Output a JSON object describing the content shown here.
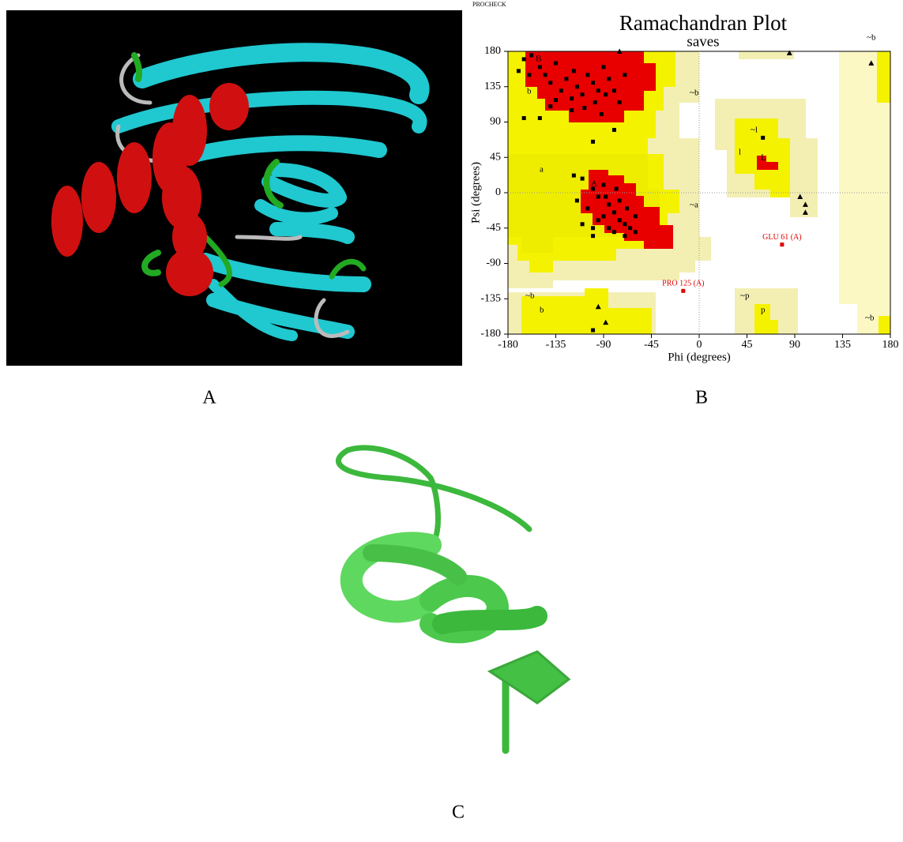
{
  "program": "PROCHECK",
  "panel_labels": [
    "A",
    "B",
    "C"
  ],
  "chart_data": {
    "type": "scatter",
    "title": "Ramachandran Plot",
    "subtitle": "saves",
    "xlabel": "Phi (degrees)",
    "ylabel": "Psi (degrees)",
    "xlim": [
      -180,
      180
    ],
    "ylim": [
      -180,
      180
    ],
    "xticks": [
      -180,
      -135,
      -90,
      -45,
      0,
      45,
      90,
      135,
      180
    ],
    "yticks": [
      -180,
      -135,
      -90,
      -45,
      0,
      45,
      90,
      135,
      180
    ],
    "region_labels": [
      "B",
      "b",
      "~b",
      "A",
      "a",
      "~a",
      "~l",
      "l",
      "L",
      "~b",
      "b",
      "~b",
      "~p",
      "p",
      "~b"
    ],
    "series": [
      {
        "marker": "square",
        "color": "#000000",
        "x": [
          -165,
          -158,
          -150,
          -145,
          -140,
          -135,
          -130,
          -125,
          -120,
          -118,
          -115,
          -110,
          -105,
          -100,
          -98,
          -95,
          -90,
          -88,
          -85,
          -80,
          -75,
          -70,
          -120,
          -140,
          -160,
          -150,
          -135,
          -108,
          -92,
          -80,
          -165,
          -170,
          -100,
          -110,
          -100,
          -95,
          -90,
          -85,
          -80,
          -75,
          -70,
          -65,
          -60,
          -105,
          -95,
          -85,
          -75,
          -68,
          -90,
          -100,
          -80,
          -70,
          -110,
          -100,
          -60,
          -115,
          -88,
          -78,
          -118,
          -100,
          60
        ],
        "y": [
          170,
          175,
          160,
          150,
          140,
          165,
          130,
          145,
          120,
          155,
          135,
          125,
          150,
          140,
          115,
          130,
          160,
          125,
          145,
          130,
          115,
          150,
          105,
          110,
          150,
          95,
          118,
          108,
          100,
          80,
          95,
          155,
          65,
          18,
          5,
          -5,
          10,
          -15,
          -25,
          -35,
          -40,
          -45,
          -30,
          -20,
          -35,
          -45,
          -10,
          -20,
          -30,
          -45,
          -50,
          -55,
          -40,
          -55,
          -50,
          -10,
          -5,
          5,
          22,
          -175,
          70
        ]
      },
      {
        "marker": "triangle",
        "color": "#000000",
        "x": [
          -75,
          85,
          162,
          95,
          100,
          100,
          -95,
          -88
        ],
        "y": [
          180,
          178,
          165,
          -5,
          -15,
          -25,
          -145,
          -165
        ]
      }
    ],
    "annotations": [
      {
        "label": "GLU 61 (A)",
        "x": 78,
        "y": -66,
        "color": "#e00000"
      },
      {
        "label": "PRO 125 (A)",
        "x": -15,
        "y": -125,
        "color": "#e00000"
      }
    ]
  }
}
